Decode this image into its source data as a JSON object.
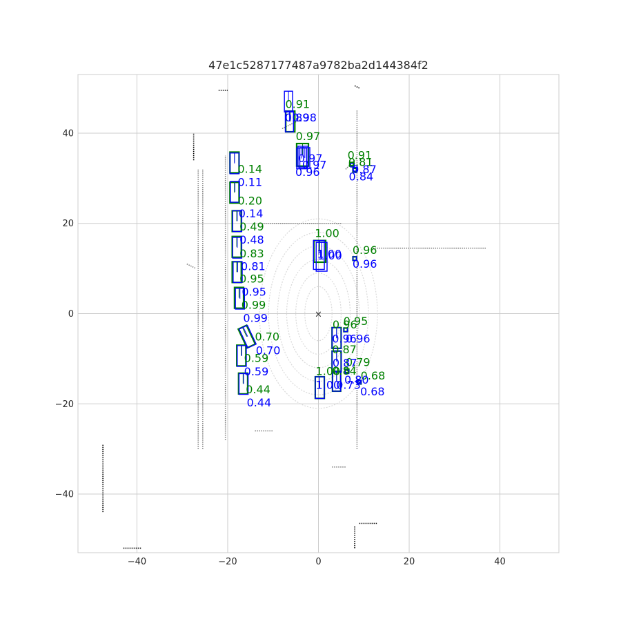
{
  "chart_data": {
    "type": "scatter",
    "title": "47e1c5287177487a9782ba2d144384f2",
    "xlabel": "",
    "ylabel": "",
    "xlim": [
      -53,
      53
    ],
    "ylim": [
      -53,
      53
    ],
    "grid": true,
    "x_ticks": [
      -40,
      -20,
      0,
      20,
      40
    ],
    "y_ticks": [
      -40,
      -20,
      0,
      20,
      40
    ],
    "x_tick_labels": [
      "−40",
      "−20",
      "0",
      "20",
      "40"
    ],
    "y_tick_labels": [
      "−40",
      "−20",
      "0",
      "20",
      "40"
    ],
    "ego_marker": {
      "x": 0,
      "y": 0,
      "symbol": "×"
    },
    "colors": {
      "ground_truth": "#008000",
      "prediction": "#0000ff",
      "points_near": "#d9d9d9",
      "points_mid": "#808080",
      "points_far": "#000000"
    },
    "point_cloud": [
      {
        "shade": "mid",
        "x": [
          -25.5,
          -25.5
        ],
        "y": [
          -30,
          32
        ]
      },
      {
        "shade": "mid",
        "x": [
          -26.5,
          -26.5
        ],
        "y": [
          -30,
          32
        ]
      },
      {
        "shade": "mid",
        "x": [
          -20.5,
          -20.5
        ],
        "y": [
          -28,
          35
        ]
      },
      {
        "shade": "mid",
        "x": [
          -13,
          5
        ],
        "y": [
          20,
          20
        ]
      },
      {
        "shade": "mid",
        "x": [
          8.5,
          8.5
        ],
        "y": [
          -30,
          45
        ]
      },
      {
        "shade": "mid",
        "x": [
          12,
          37
        ],
        "y": [
          14.5,
          14.5
        ]
      },
      {
        "shade": "mid",
        "x": [
          -8,
          -4
        ],
        "y": [
          41,
          43
        ]
      },
      {
        "shade": "mid",
        "x": [
          6,
          8
        ],
        "y": [
          32,
          34
        ]
      },
      {
        "shade": "mid",
        "x": [
          -14,
          -10
        ],
        "y": [
          -26,
          -26
        ]
      },
      {
        "shade": "mid",
        "x": [
          3,
          6
        ],
        "y": [
          -34,
          -34
        ]
      },
      {
        "shade": "mid",
        "x": [
          -29,
          -27
        ],
        "y": [
          11,
          10
        ]
      },
      {
        "shade": "far",
        "x": [
          -47.5,
          -47.5
        ],
        "y": [
          -44,
          -29
        ]
      },
      {
        "shade": "far",
        "x": [
          -43,
          -39
        ],
        "y": [
          -52,
          -52
        ]
      },
      {
        "shade": "far",
        "x": [
          9,
          13
        ],
        "y": [
          -46.5,
          -46.5
        ]
      },
      {
        "shade": "far",
        "x": [
          8,
          8
        ],
        "y": [
          -52,
          -47
        ]
      },
      {
        "shade": "far",
        "x": [
          -22,
          -20
        ],
        "y": [
          49.5,
          49.5
        ]
      },
      {
        "shade": "far",
        "x": [
          8,
          9
        ],
        "y": [
          50.5,
          50
        ]
      },
      {
        "shade": "far",
        "x": [
          -27.5,
          -27.5
        ],
        "y": [
          34,
          40
        ]
      }
    ],
    "ground_truth_boxes": [
      {
        "cx": -18.5,
        "cy": 33.5,
        "w": 2.0,
        "h": 4.6,
        "angle": 0,
        "score": "0.14",
        "lx": -17.8,
        "ly": 31.2
      },
      {
        "cx": -18.5,
        "cy": 26.8,
        "w": 2.0,
        "h": 4.6,
        "angle": 0,
        "score": "0.20",
        "lx": -17.8,
        "ly": 24.2
      },
      {
        "cx": -18.0,
        "cy": 20.5,
        "w": 2.0,
        "h": 4.6,
        "angle": 0,
        "score": "0.49",
        "lx": -17.4,
        "ly": 18.4
      },
      {
        "cx": -18.0,
        "cy": 14.8,
        "w": 2.0,
        "h": 4.6,
        "angle": 0,
        "score": "0.83",
        "lx": -17.4,
        "ly": 12.5
      },
      {
        "cx": -18.0,
        "cy": 9.2,
        "w": 2.0,
        "h": 4.6,
        "angle": 0,
        "score": "0.95",
        "lx": -17.4,
        "ly": 6.9
      },
      {
        "cx": -17.5,
        "cy": 3.5,
        "w": 2.0,
        "h": 4.6,
        "angle": 0,
        "score": "0.99",
        "lx": -17.0,
        "ly": 1.1
      },
      {
        "cx": -15.8,
        "cy": -5.1,
        "w": 2.0,
        "h": 4.6,
        "angle": 25,
        "score": "0.70",
        "lx": -14.0,
        "ly": -6.0
      },
      {
        "cx": -17.0,
        "cy": -9.3,
        "w": 2.0,
        "h": 4.6,
        "angle": 0,
        "score": "0.59",
        "lx": -16.4,
        "ly": -10.7
      },
      {
        "cx": -16.6,
        "cy": -15.5,
        "w": 2.0,
        "h": 4.6,
        "angle": 0,
        "score": "0.44",
        "lx": -16.0,
        "ly": -17.7
      },
      {
        "cx": -6.2,
        "cy": 42.6,
        "w": 2.0,
        "h": 4.6,
        "angle": 0,
        "score": "0.91",
        "lx": -7.3,
        "ly": 45.6
      },
      {
        "cx": -3.5,
        "cy": 35.2,
        "w": 2.6,
        "h": 5.0,
        "angle": 0,
        "score": "0.97",
        "lx": -5.0,
        "ly": 38.5
      },
      {
        "cx": 7.3,
        "cy": 33.1,
        "w": 0.8,
        "h": 0.8,
        "angle": 0,
        "score": "0.91",
        "lx": 6.4,
        "ly": 34.3
      },
      {
        "cx": 8.0,
        "cy": 31.8,
        "w": 0.8,
        "h": 0.8,
        "angle": 0,
        "score": "0.81",
        "lx": 6.6,
        "ly": 32.7
      },
      {
        "cx": 0.3,
        "cy": 13.8,
        "w": 2.6,
        "h": 4.8,
        "angle": 0,
        "score": "1.00",
        "lx": -0.8,
        "ly": 17.0
      },
      {
        "cx": 8.0,
        "cy": 12.2,
        "w": 0.8,
        "h": 0.8,
        "angle": 0,
        "score": "0.96",
        "lx": 7.5,
        "ly": 13.2
      },
      {
        "cx": 4.0,
        "cy": -5.4,
        "w": 2.0,
        "h": 4.6,
        "angle": 0,
        "score": "0.96",
        "lx": 3.1,
        "ly": -3.3
      },
      {
        "cx": 6.0,
        "cy": -3.6,
        "w": 0.8,
        "h": 0.8,
        "angle": 0,
        "score": "0.95",
        "lx": 5.5,
        "ly": -2.5
      },
      {
        "cx": 4.0,
        "cy": -10.6,
        "w": 2.0,
        "h": 4.6,
        "angle": 0,
        "score": "0.87",
        "lx": 3.0,
        "ly": -8.8
      },
      {
        "cx": 6.3,
        "cy": -12.7,
        "w": 0.8,
        "h": 0.8,
        "angle": 0,
        "score": "0.79",
        "lx": 6.0,
        "ly": -11.6
      },
      {
        "cx": 4.0,
        "cy": -15.0,
        "w": 1.8,
        "h": 4.4,
        "angle": 0,
        "score": "0.84",
        "lx": 3.0,
        "ly": -13.5
      },
      {
        "cx": 0.3,
        "cy": -16.4,
        "w": 2.0,
        "h": 4.8,
        "angle": 0,
        "score": "1.00",
        "lx": -0.6,
        "ly": -13.6
      },
      {
        "cx": 9.0,
        "cy": -15.2,
        "w": 0.8,
        "h": 0.8,
        "angle": 0,
        "score": "0.68",
        "lx": 9.3,
        "ly": -14.6
      }
    ],
    "predicted_boxes": [
      {
        "cx": -18.5,
        "cy": 33.3,
        "w": 2.0,
        "h": 4.6,
        "angle": 0,
        "score": "0.11",
        "lx": -17.8,
        "ly": 28.3
      },
      {
        "cx": -18.4,
        "cy": 27.0,
        "w": 2.0,
        "h": 4.6,
        "angle": 0,
        "score": "0.14",
        "lx": -17.6,
        "ly": 21.3
      },
      {
        "cx": -17.9,
        "cy": 20.5,
        "w": 2.0,
        "h": 4.6,
        "angle": 0,
        "score": "0.48",
        "lx": -17.4,
        "ly": 15.5
      },
      {
        "cx": -17.9,
        "cy": 14.6,
        "w": 2.0,
        "h": 4.6,
        "angle": 0,
        "score": "0.81",
        "lx": -17.1,
        "ly": 9.6
      },
      {
        "cx": -17.8,
        "cy": 9.2,
        "w": 2.0,
        "h": 4.6,
        "angle": 0,
        "score": "0.95",
        "lx": -16.9,
        "ly": 4.0
      },
      {
        "cx": -17.3,
        "cy": 3.3,
        "w": 2.0,
        "h": 4.6,
        "angle": 0,
        "score": "0.99",
        "lx": -16.6,
        "ly": -1.8
      },
      {
        "cx": -15.6,
        "cy": -5.1,
        "w": 2.0,
        "h": 4.6,
        "angle": 25,
        "score": "0.70",
        "lx": -13.8,
        "ly": -9.0
      },
      {
        "cx": -16.9,
        "cy": -9.4,
        "w": 2.0,
        "h": 4.6,
        "angle": 0,
        "score": "0.59",
        "lx": -16.4,
        "ly": -13.7
      },
      {
        "cx": -16.5,
        "cy": -15.6,
        "w": 2.0,
        "h": 4.6,
        "angle": 0,
        "score": "0.44",
        "lx": -15.8,
        "ly": -20.6
      },
      {
        "cx": -6.6,
        "cy": 47.0,
        "w": 1.8,
        "h": 4.6,
        "angle": 0,
        "score": "0.98",
        "lx": -5.8,
        "ly": 42.6
      },
      {
        "cx": -6.4,
        "cy": 42.6,
        "w": 1.8,
        "h": 4.6,
        "angle": 0,
        "score": "0.89",
        "lx": -7.4,
        "ly": 42.6
      },
      {
        "cx": -3.4,
        "cy": 34.8,
        "w": 2.2,
        "h": 4.6,
        "angle": 0,
        "score": "0.97",
        "lx": -4.5,
        "ly": 33.6
      },
      {
        "cx": -3.0,
        "cy": 34.5,
        "w": 2.2,
        "h": 4.6,
        "angle": 0,
        "score": "0.97",
        "lx": -3.6,
        "ly": 32.1
      },
      {
        "cx": -3.7,
        "cy": 34.4,
        "w": 2.2,
        "h": 4.6,
        "angle": 0,
        "score": "0.96",
        "lx": -5.1,
        "ly": 30.5
      },
      {
        "cx": 7.5,
        "cy": 32.9,
        "w": 0.8,
        "h": 0.8,
        "angle": 0,
        "score": "0.87",
        "lx": 7.4,
        "ly": 31.1
      },
      {
        "cx": 8.0,
        "cy": 32.0,
        "w": 0.8,
        "h": 0.8,
        "angle": 0,
        "score": "0.84",
        "lx": 6.7,
        "ly": 29.5
      },
      {
        "cx": 0.1,
        "cy": 13.0,
        "w": 2.4,
        "h": 6.4,
        "angle": 0,
        "score": "1.00",
        "lx": -0.3,
        "ly": 12.4
      },
      {
        "cx": 0.7,
        "cy": 12.6,
        "w": 2.4,
        "h": 6.4,
        "angle": 0,
        "score": "1.00",
        "lx": -0.2,
        "ly": 12.0
      },
      {
        "cx": 8.0,
        "cy": 12.2,
        "w": 0.8,
        "h": 0.8,
        "angle": 0,
        "score": "0.96",
        "lx": 7.5,
        "ly": 10.2
      },
      {
        "cx": 4.0,
        "cy": -5.4,
        "w": 2.0,
        "h": 4.6,
        "angle": 0,
        "score": "0.96",
        "lx": 3.0,
        "ly": -6.4
      },
      {
        "cx": 6.0,
        "cy": -3.6,
        "w": 0.8,
        "h": 0.8,
        "angle": 0,
        "score": "0.96",
        "lx": 6.0,
        "ly": -6.4
      },
      {
        "cx": 4.0,
        "cy": -10.6,
        "w": 2.0,
        "h": 4.6,
        "angle": 0,
        "score": "0.87",
        "lx": 3.1,
        "ly": -11.8
      },
      {
        "cx": 6.3,
        "cy": -12.9,
        "w": 0.8,
        "h": 0.8,
        "angle": 0,
        "score": "0.80",
        "lx": 5.7,
        "ly": -15.5
      },
      {
        "cx": 4.0,
        "cy": -15.0,
        "w": 1.8,
        "h": 4.4,
        "angle": 0,
        "score": "0.73",
        "lx": 3.9,
        "ly": -16.7
      },
      {
        "cx": 0.3,
        "cy": -16.4,
        "w": 2.0,
        "h": 4.8,
        "angle": 0,
        "score": "1.00",
        "lx": -0.6,
        "ly": -16.7
      },
      {
        "cx": 9.0,
        "cy": -15.2,
        "w": 0.8,
        "h": 0.8,
        "angle": 0,
        "score": "0.68",
        "lx": 9.2,
        "ly": -18.1
      }
    ]
  }
}
